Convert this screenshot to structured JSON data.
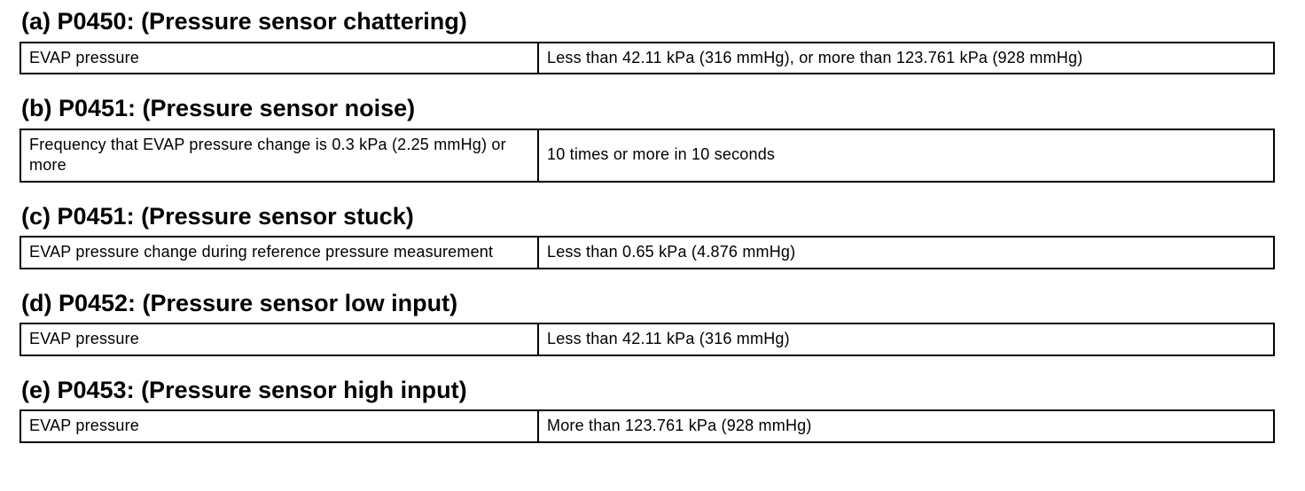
{
  "document": {
    "sections": [
      {
        "heading": "(a) P0450: (Pressure sensor chattering)",
        "row": {
          "item": "EVAP pressure",
          "condition": "Less than 42.11 kPa (316 mmHg), or more than 123.761 kPa (928 mmHg)"
        }
      },
      {
        "heading": "(b) P0451: (Pressure sensor noise)",
        "row": {
          "item": "Frequency that EVAP pressure change is 0.3 kPa (2.25 mmHg) or more",
          "condition": "10 times or more in 10 seconds"
        }
      },
      {
        "heading": "(c) P0451: (Pressure sensor stuck)",
        "row": {
          "item": "EVAP pressure change during reference pressure measurement",
          "condition": "Less than 0.65 kPa (4.876 mmHg)"
        }
      },
      {
        "heading": "(d) P0452: (Pressure sensor low input)",
        "row": {
          "item": "EVAP pressure",
          "condition": "Less than 42.11 kPa (316 mmHg)"
        }
      },
      {
        "heading": "(e) P0453: (Pressure sensor high input)",
        "row": {
          "item": "EVAP pressure",
          "condition": "More than 123.761 kPa (928 mmHg)"
        }
      }
    ]
  }
}
